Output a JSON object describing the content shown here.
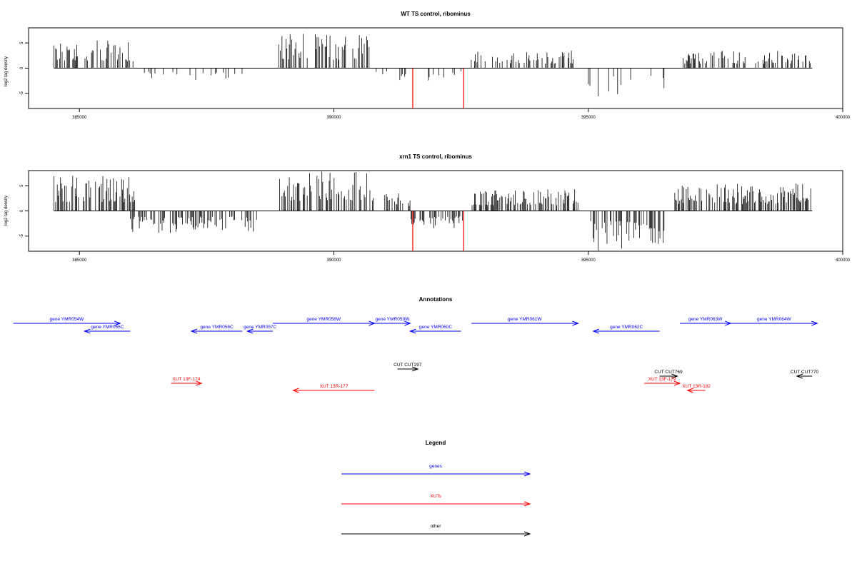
{
  "chart_data": [
    {
      "type": "bar",
      "title": "WT TS control, ribominus",
      "ylabel": "log2 tag density",
      "xlim": [
        384000,
        400000
      ],
      "ylim": [
        -8,
        8
      ],
      "xticks": [
        385000,
        390000,
        395000,
        400000
      ],
      "yticks": [
        -5,
        0,
        5
      ],
      "positive_regions": [
        {
          "start": 384500,
          "end": 386100,
          "max": 5.5
        },
        {
          "start": 388900,
          "end": 390800,
          "max": 6.8
        },
        {
          "start": 392700,
          "end": 394800,
          "max": 3.5
        },
        {
          "start": 396800,
          "end": 399400,
          "max": 3.5
        }
      ],
      "negative_regions": [
        {
          "start": 386100,
          "end": 388400,
          "min": -2.5
        },
        {
          "start": 390800,
          "end": 392600,
          "min": -2.5
        },
        {
          "start": 395000,
          "end": 396500,
          "min": -6.0
        }
      ],
      "highlights": [
        {
          "x": 391550,
          "y": -8,
          "color": "#ff0000"
        },
        {
          "x": 392550,
          "y": -8,
          "color": "#ff0000"
        }
      ]
    },
    {
      "type": "bar",
      "title": "xrn1 TS control, ribominus",
      "ylabel": "log2 tag density",
      "xlim": [
        384000,
        400000
      ],
      "ylim": [
        -8,
        8
      ],
      "xticks": [
        385000,
        390000,
        395000,
        400000
      ],
      "yticks": [
        -5,
        0,
        5
      ],
      "positive_regions": [
        {
          "start": 384500,
          "end": 386100,
          "max": 7.0
        },
        {
          "start": 388900,
          "end": 390800,
          "max": 8.0
        },
        {
          "start": 391000,
          "end": 391500,
          "max": 4.0
        },
        {
          "start": 392700,
          "end": 394800,
          "max": 4.5
        },
        {
          "start": 396700,
          "end": 399400,
          "max": 5.5
        }
      ],
      "negative_regions": [
        {
          "start": 386000,
          "end": 388500,
          "min": -4.5
        },
        {
          "start": 391500,
          "end": 392600,
          "min": -3.5
        },
        {
          "start": 395000,
          "end": 396500,
          "min": -8.0
        }
      ],
      "highlights": [
        {
          "x": 391550,
          "y": -8,
          "color": "#ff0000"
        },
        {
          "x": 392550,
          "y": -8,
          "color": "#ff0000"
        }
      ]
    }
  ],
  "annotations": {
    "title": "Annotations",
    "features": [
      {
        "label": "gene YMR054W",
        "start": 383700,
        "end": 385800,
        "strand": "+",
        "kind": "gene",
        "row": 0
      },
      {
        "label": "gene YMR055C",
        "start": 385100,
        "end": 386000,
        "strand": "-",
        "kind": "gene",
        "row": 1
      },
      {
        "label": "gene YMR056C",
        "start": 387200,
        "end": 388200,
        "strand": "-",
        "kind": "gene",
        "row": 1
      },
      {
        "label": "gene YMR057C",
        "start": 388300,
        "end": 388800,
        "strand": "-",
        "kind": "gene",
        "row": 1
      },
      {
        "label": "gene YMR058W",
        "start": 388800,
        "end": 390800,
        "strand": "+",
        "kind": "gene",
        "row": 0
      },
      {
        "label": "gene YMR059W",
        "start": 390800,
        "end": 391500,
        "strand": "+",
        "kind": "gene",
        "row": 0
      },
      {
        "label": "gene YMR060C",
        "start": 391500,
        "end": 392500,
        "strand": "-",
        "kind": "gene",
        "row": 1
      },
      {
        "label": "gene YMR061W",
        "start": 392700,
        "end": 394800,
        "strand": "+",
        "kind": "gene",
        "row": 0
      },
      {
        "label": "gene YMR062C",
        "start": 395100,
        "end": 396400,
        "strand": "-",
        "kind": "gene",
        "row": 1
      },
      {
        "label": "gene YMR063W",
        "start": 396800,
        "end": 397800,
        "strand": "+",
        "kind": "gene",
        "row": 0
      },
      {
        "label": "gene YMR064W",
        "start": 397800,
        "end": 399500,
        "strand": "+",
        "kind": "gene",
        "row": 0
      },
      {
        "label": "CUT CUT297",
        "start": 391250,
        "end": 391650,
        "strand": "+",
        "kind": "other",
        "row": 2
      },
      {
        "label": "CUT CUT769",
        "start": 396400,
        "end": 396750,
        "strand": "+",
        "kind": "other",
        "row": 3
      },
      {
        "label": "CUT CUT770",
        "start": 399100,
        "end": 399400,
        "strand": "-",
        "kind": "other",
        "row": 3
      },
      {
        "label": "XUT 13F-174",
        "start": 386800,
        "end": 387400,
        "strand": "+",
        "kind": "xut",
        "row": 4
      },
      {
        "label": "XUT 13R-177",
        "start": 389200,
        "end": 390800,
        "strand": "-",
        "kind": "xut",
        "row": 5
      },
      {
        "label": "XUT 13F-179",
        "start": 396100,
        "end": 396800,
        "strand": "+",
        "kind": "xut",
        "row": 4
      },
      {
        "label": "XUT 13R-182",
        "start": 396950,
        "end": 397300,
        "strand": "-",
        "kind": "xut",
        "row": 5
      }
    ]
  },
  "legend": {
    "title": "Legend",
    "items": [
      {
        "label": "genes",
        "color": "#0000ff"
      },
      {
        "label": "XUTs",
        "color": "#ff0000"
      },
      {
        "label": "other",
        "color": "#000000"
      }
    ]
  },
  "colors": {
    "gene": "#0000ff",
    "xut": "#ff0000",
    "other": "#000000"
  }
}
